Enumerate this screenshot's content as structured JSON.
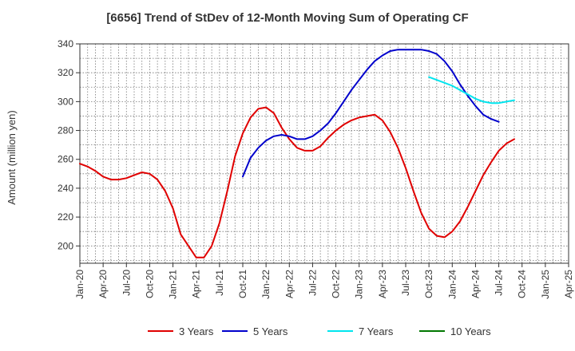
{
  "chart_data": {
    "type": "line",
    "title": "[6656]  Trend of StDev of 12-Month Moving Sum of Operating CF",
    "ylabel": "Amount (million yen)",
    "xlabel": "",
    "ylim": [
      188,
      340
    ],
    "yticks": [
      200,
      220,
      240,
      260,
      280,
      300,
      320,
      340
    ],
    "x_tick_labels": [
      "Jan-20",
      "Apr-20",
      "Jul-20",
      "Oct-20",
      "Jan-21",
      "Apr-21",
      "Jul-21",
      "Oct-21",
      "Jan-22",
      "Apr-22",
      "Jul-22",
      "Oct-22",
      "Jan-23",
      "Apr-23",
      "Jul-23",
      "Oct-23",
      "Jan-24",
      "Apr-24",
      "Jul-24",
      "Oct-24",
      "Jan-25",
      "Apr-25"
    ],
    "grid": true,
    "legend_position": "bottom",
    "series": [
      {
        "name": "3 Years",
        "color": "#e00000",
        "start_index": 0,
        "values": [
          257,
          255,
          252,
          248,
          246,
          246,
          247,
          249,
          251,
          250,
          246,
          238,
          226,
          208,
          200,
          192,
          192,
          200,
          216,
          238,
          262,
          278,
          289,
          295,
          296,
          292,
          282,
          274,
          268,
          266,
          266,
          269,
          275,
          280,
          284,
          287,
          289,
          290,
          291,
          287,
          279,
          268,
          254,
          238,
          223,
          212,
          207,
          206,
          210,
          217,
          227,
          238,
          249,
          258,
          266,
          271,
          274
        ]
      },
      {
        "name": "5 Years",
        "color": "#0000cc",
        "start_index": 21,
        "values": [
          248,
          261,
          268,
          273,
          276,
          277,
          276,
          274,
          274,
          276,
          280,
          285,
          292,
          300,
          308,
          315,
          322,
          328,
          332,
          335,
          336,
          336,
          336,
          336,
          335,
          333,
          328,
          321,
          312,
          304,
          297,
          291,
          288,
          286
        ]
      },
      {
        "name": "7 Years",
        "color": "#00e5ee",
        "start_index": 45,
        "values": [
          317,
          315,
          313,
          311,
          308,
          305,
          302,
          300,
          299,
          299,
          300,
          301
        ]
      },
      {
        "name": "10 Years",
        "color": "#007700",
        "start_index": 0,
        "values": []
      }
    ]
  }
}
